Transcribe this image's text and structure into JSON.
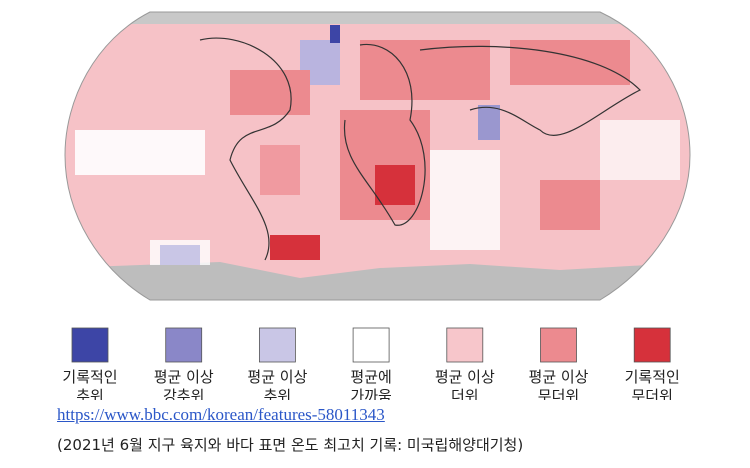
{
  "map": {
    "legend": [
      {
        "lines": [
          "기록적인",
          "추위"
        ],
        "color": "#3d45a6"
      },
      {
        "lines": [
          "평균 이상",
          "강추위"
        ],
        "color": "#8a87c8"
      },
      {
        "lines": [
          "평균 이상",
          "추위"
        ],
        "color": "#c9c6e6"
      },
      {
        "lines": [
          "평균에",
          "가까움"
        ],
        "color": "#ffffff"
      },
      {
        "lines": [
          "평균 이상",
          "더위"
        ],
        "color": "#f7c6cb"
      },
      {
        "lines": [
          "평균 이상",
          "무더위"
        ],
        "color": "#ec8a8f"
      },
      {
        "lines": [
          "기록적인",
          "무더위"
        ],
        "color": "#d6313b"
      }
    ]
  },
  "source": "https://www.bbc.com/korean/features-58011343",
  "caption": "(2021년 6월 지구 육지와 바다 표면 온도 최고치 기록: 미국립해양대기청)"
}
